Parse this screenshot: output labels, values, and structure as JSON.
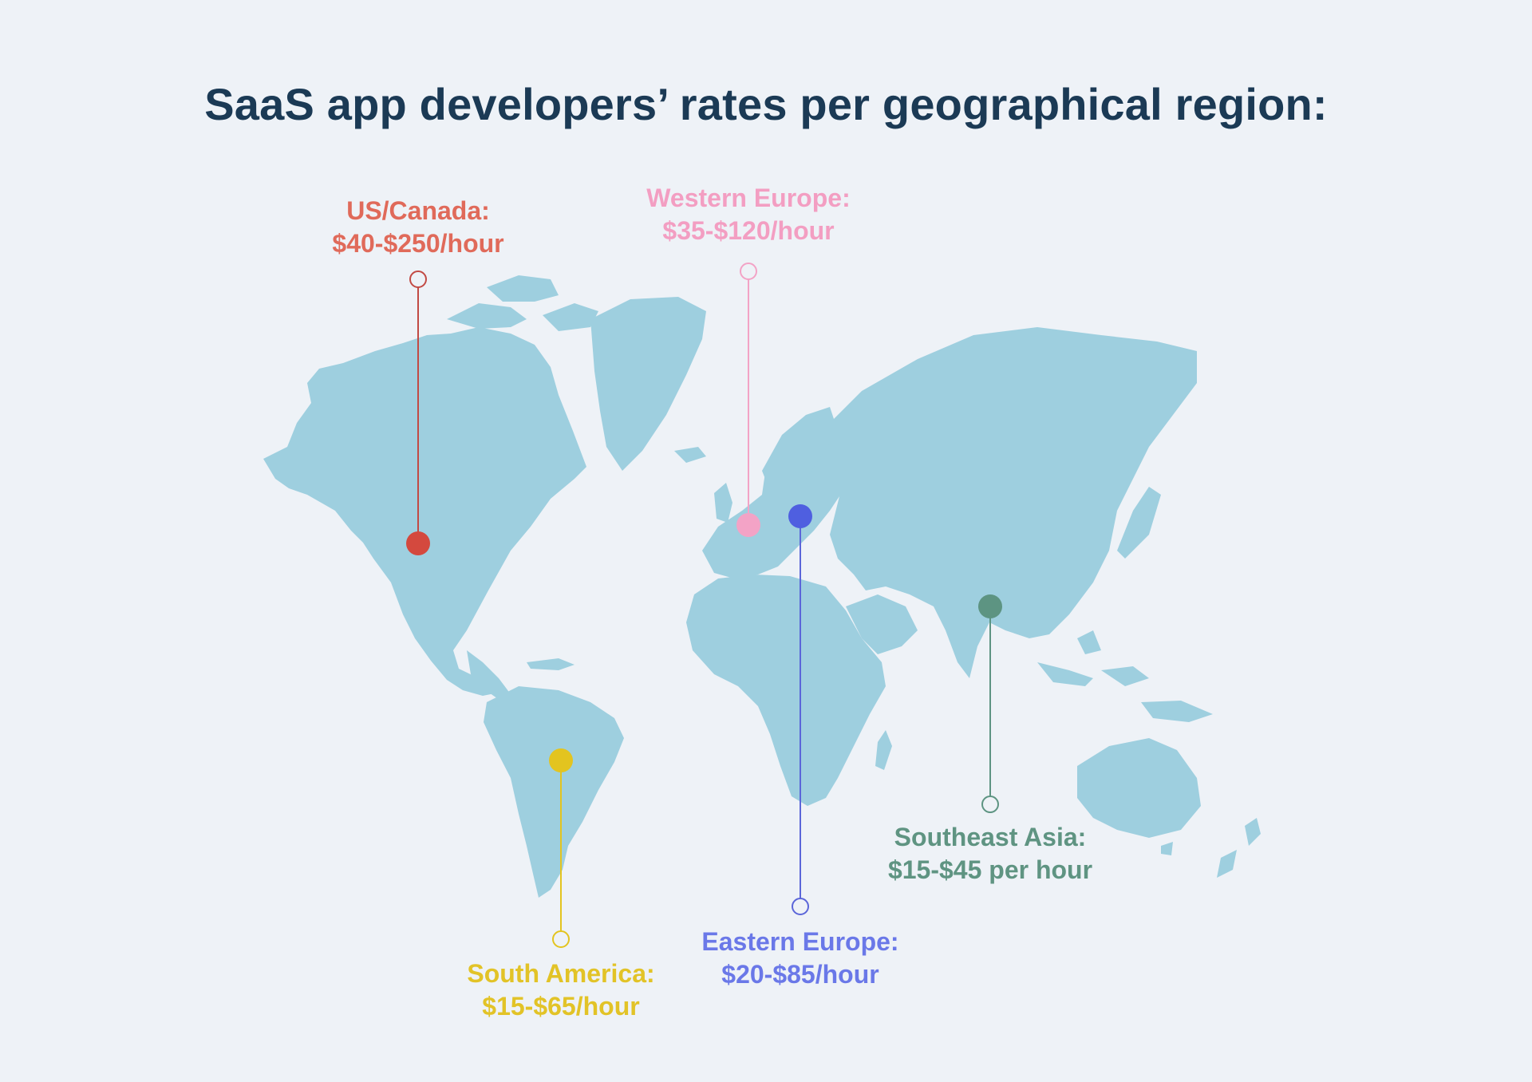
{
  "title": "SaaS app developers’ rates per geographical region:",
  "colors": {
    "background": "#eef2f7",
    "land": "#9ecfdf",
    "title": "#1b3a55"
  },
  "regions": [
    {
      "id": "us-canada",
      "name": "US/Canada:",
      "rate": "$40-$250/hour",
      "color": "#e06a5a",
      "dot_color": "#d4493e",
      "line_color": "#c24a44"
    },
    {
      "id": "western-europe",
      "name": "Western Europe:",
      "rate": "$35-$120/hour",
      "color": "#f39ec2",
      "dot_color": "#f3a3c6",
      "line_color": "#f3a3c6"
    },
    {
      "id": "eastern-europe",
      "name": "Eastern Europe:",
      "rate": "$20-$85/hour",
      "color": "#6a78e8",
      "dot_color": "#4f5fe0",
      "line_color": "#5b66d9"
    },
    {
      "id": "south-america",
      "name": "South America:",
      "rate": "$15-$65/hour",
      "color": "#e2c327",
      "dot_color": "#e3c41f",
      "line_color": "#e3c41f"
    },
    {
      "id": "southeast-asia",
      "name": "Southeast Asia:",
      "rate": "$15-$45 per hour",
      "color": "#5f9482",
      "dot_color": "#5d9482",
      "line_color": "#5d9482"
    }
  ]
}
